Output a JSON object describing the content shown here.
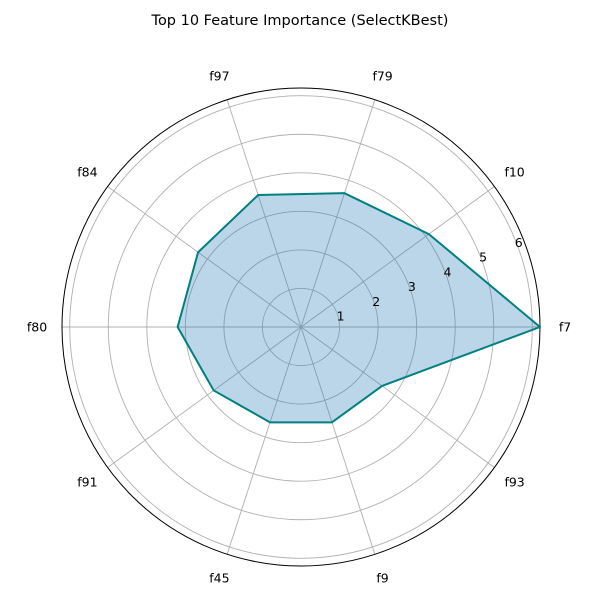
{
  "chart_data": {
    "type": "radar",
    "title": "Top 10 Feature Importance (SelectKBest)",
    "categories": [
      "f7",
      "f10",
      "f79",
      "f97",
      "f84",
      "f80",
      "f91",
      "f45",
      "f9",
      "f93"
    ],
    "series": [
      {
        "values": [
          6.2,
          4.1,
          3.65,
          3.6,
          3.3,
          3.2,
          2.8,
          2.6,
          2.6,
          2.6
        ]
      }
    ],
    "rticks": [
      1,
      2,
      3,
      4,
      5,
      6
    ],
    "rlim": [
      0,
      6.2
    ],
    "grid": true,
    "colors": {
      "line": "#008080",
      "fill": "#1f77b4"
    }
  }
}
